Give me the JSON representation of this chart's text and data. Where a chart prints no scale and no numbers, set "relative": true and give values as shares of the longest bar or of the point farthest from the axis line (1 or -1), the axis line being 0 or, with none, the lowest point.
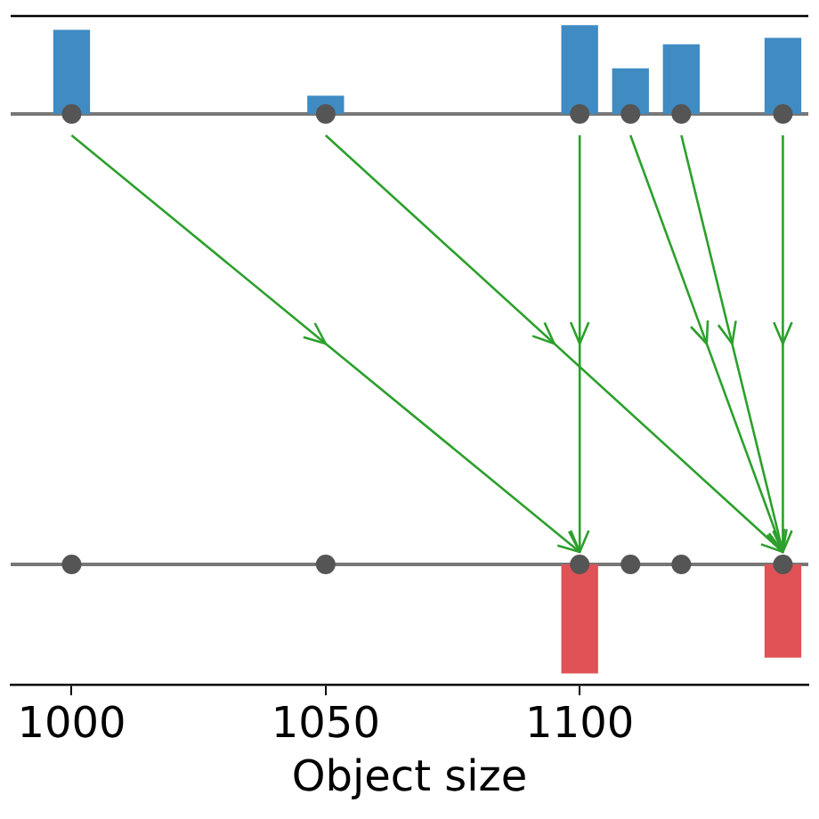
{
  "chart_data": [
    {
      "type": "bar",
      "relative": true,
      "xlim": [
        988,
        1145
      ],
      "xticks": [
        1000,
        1050,
        1100
      ],
      "tick_labels": false,
      "grid": false,
      "legend": false,
      "series": [
        {
          "color": "#3f8bc2",
          "x": [
            1000,
            1050,
            1100,
            1110,
            1120,
            1140
          ],
          "values": [
            0.945,
            0.2,
            1,
            0.509,
            0.782,
            0.855
          ]
        },
        {
          "type": "scatter",
          "color": "#555555",
          "marker": "circle",
          "x": [
            1000,
            1050,
            1100,
            1110,
            1120,
            1140
          ],
          "values": [
            0,
            0,
            0,
            0,
            0,
            0
          ]
        }
      ]
    },
    {
      "type": "bar",
      "relative": true,
      "xlim": [
        988,
        1145
      ],
      "xticks": [
        1000,
        1050,
        1100
      ],
      "xlabel": "Object size",
      "grid": false,
      "legend": false,
      "series": [
        {
          "color": "#e05255",
          "x": [
            1100,
            1140
          ],
          "values": [
            -1,
            -0.855
          ]
        },
        {
          "type": "scatter",
          "color": "#555555",
          "marker": "circle",
          "x": [
            1000,
            1050,
            1100,
            1110,
            1120,
            1140
          ],
          "values": [
            0,
            0,
            0,
            0,
            0,
            0
          ]
        }
      ]
    }
  ]
}
